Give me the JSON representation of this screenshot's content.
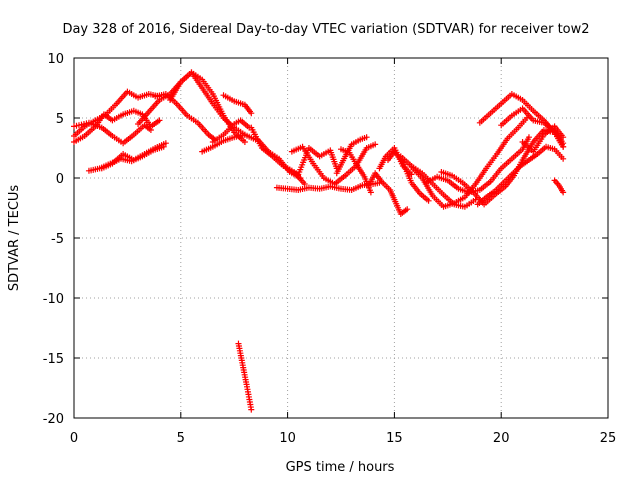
{
  "chart_data": {
    "type": "scatter",
    "title": "Day 328 of 2016, Sidereal Day-to-day VTEC variation (SDTVAR) for receiver tow2",
    "xlabel": "GPS time / hours",
    "ylabel": "SDTVAR / TECUs",
    "xlim": [
      0,
      25
    ],
    "ylim": [
      -20,
      10
    ],
    "xticks": [
      "0",
      "5",
      "10",
      "15",
      "20",
      "25"
    ],
    "yticks": [
      "10",
      "5",
      "0",
      "-5",
      "-10",
      "-15",
      "-20"
    ],
    "grid": true,
    "marker": "+",
    "series_color": "#ff0000",
    "tracks": [
      {
        "name": "arc-1",
        "x": [
          0.0,
          0.5,
          1.0,
          1.5,
          2.0,
          2.5,
          3.0,
          3.5,
          4.0
        ],
        "y": [
          3.5,
          4.3,
          4.8,
          5.3,
          6.2,
          7.2,
          6.7,
          7.0,
          6.8
        ]
      },
      {
        "name": "arc-2",
        "x": [
          0.0,
          0.7,
          1.3,
          1.8,
          2.3,
          2.8,
          3.3,
          3.6
        ],
        "y": [
          4.3,
          4.6,
          4.2,
          3.5,
          2.9,
          3.6,
          4.4,
          4.0
        ]
      },
      {
        "name": "arc-3",
        "x": [
          0.0,
          0.5,
          1.0,
          1.4,
          1.8,
          2.3,
          2.8,
          3.2,
          3.6,
          4.0
        ],
        "y": [
          3.0,
          3.5,
          4.3,
          5.3,
          4.8,
          5.3,
          5.6,
          5.3,
          4.3,
          4.8
        ]
      },
      {
        "name": "arc-4",
        "x": [
          0.7,
          1.2,
          1.7,
          2.2,
          2.7,
          3.2,
          3.7,
          4.2
        ],
        "y": [
          0.6,
          0.8,
          1.2,
          1.6,
          1.4,
          1.8,
          2.3,
          2.6
        ]
      },
      {
        "name": "arc-5",
        "x": [
          1.3,
          1.8,
          2.3,
          2.8,
          3.3,
          3.8,
          4.3
        ],
        "y": [
          0.8,
          1.2,
          2.0,
          1.5,
          2.0,
          2.5,
          2.9
        ]
      },
      {
        "name": "arc-6",
        "x": [
          3.0,
          3.5,
          4.0,
          4.5,
          5.0,
          5.5,
          6.0,
          6.5,
          7.0,
          7.5,
          8.0
        ],
        "y": [
          4.5,
          5.5,
          6.5,
          7.0,
          8.0,
          8.8,
          8.2,
          7.0,
          5.2,
          3.8,
          3.0
        ]
      },
      {
        "name": "arc-7",
        "x": [
          3.8,
          4.3,
          4.8,
          5.3,
          5.8,
          6.3,
          6.6
        ],
        "y": [
          6.8,
          7.0,
          6.2,
          5.2,
          4.6,
          3.6,
          3.2
        ]
      },
      {
        "name": "arc-8",
        "x": [
          4.5,
          5.0,
          5.5,
          6.0,
          6.5,
          7.0,
          7.5,
          8.0,
          8.5
        ],
        "y": [
          6.5,
          8.0,
          8.8,
          7.5,
          6.2,
          5.0,
          4.2,
          3.6,
          3.2
        ]
      },
      {
        "name": "arc-9",
        "x": [
          6.0,
          6.5,
          7.0,
          7.5,
          8.0
        ],
        "y": [
          2.2,
          2.6,
          3.1,
          3.4,
          3.6
        ]
      },
      {
        "name": "arc-10",
        "x": [
          6.5,
          7.0,
          7.5,
          7.8,
          8.2
        ],
        "y": [
          3.0,
          3.6,
          4.5,
          4.8,
          4.2
        ]
      },
      {
        "name": "arc-11",
        "x": [
          7.0,
          7.5,
          8.0,
          8.3
        ],
        "y": [
          6.9,
          6.4,
          6.1,
          5.4
        ]
      },
      {
        "name": "arc-12",
        "x": [
          8.3,
          8.8,
          9.3,
          9.8,
          10.3,
          10.8
        ],
        "y": [
          4.2,
          2.5,
          1.8,
          1.0,
          0.5,
          -0.5
        ]
      },
      {
        "name": "arc-13",
        "x": [
          8.6,
          9.1,
          9.6,
          10.1,
          10.6
        ],
        "y": [
          3.2,
          2.2,
          1.6,
          0.5,
          0.0
        ]
      },
      {
        "name": "arc-14",
        "x": [
          9.5,
          10.0,
          10.5,
          11.0,
          11.5,
          12.0,
          12.5,
          13.0,
          13.5,
          14.0,
          14.3
        ],
        "y": [
          -0.8,
          -0.9,
          -1.0,
          -0.8,
          -0.9,
          -0.7,
          -0.9,
          -1.0,
          -0.6,
          -0.5,
          -0.4
        ]
      },
      {
        "name": "arc-15",
        "x": [
          10.0,
          10.5,
          11.0,
          11.5,
          12.0,
          12.3
        ],
        "y": [
          0.8,
          0.3,
          2.5,
          1.8,
          2.3,
          0.8
        ]
      },
      {
        "name": "arc-16",
        "x": [
          10.2,
          10.7,
          11.2,
          11.7,
          12.2,
          12.7,
          13.2,
          13.7,
          14.1
        ],
        "y": [
          2.2,
          2.6,
          1.2,
          0.0,
          -0.5,
          0.2,
          1.0,
          2.5,
          2.8
        ]
      },
      {
        "name": "arc-17",
        "x": [
          12.3,
          12.7,
          13.0,
          13.4,
          13.7
        ],
        "y": [
          0.4,
          1.8,
          2.8,
          3.2,
          3.4
        ]
      },
      {
        "name": "arc-18",
        "x": [
          12.5,
          12.9,
          13.2,
          13.6,
          13.9
        ],
        "y": [
          2.4,
          2.1,
          1.2,
          0.1,
          -1.2
        ]
      },
      {
        "name": "arc-19",
        "x": [
          13.8,
          14.1,
          14.4,
          14.8,
          15.0,
          15.3,
          15.6
        ],
        "y": [
          -0.6,
          0.4,
          -0.3,
          -1.0,
          -1.8,
          -3.0,
          -2.6
        ]
      },
      {
        "name": "arc-20",
        "x": [
          14.3,
          14.6,
          15.0,
          15.4,
          15.8
        ],
        "y": [
          0.8,
          1.8,
          2.5,
          1.0,
          0.3
        ]
      },
      {
        "name": "arc-21",
        "x": [
          14.7,
          15.0,
          15.4,
          15.8,
          16.2,
          16.6
        ],
        "y": [
          1.5,
          2.2,
          1.3,
          -0.4,
          -1.3,
          -1.9
        ]
      },
      {
        "name": "arc-22",
        "x": [
          15.3,
          15.8,
          16.3,
          16.8,
          17.3,
          17.8,
          18.3,
          18.8
        ],
        "y": [
          1.8,
          1.0,
          0.4,
          -0.5,
          -1.4,
          -2.2,
          -2.4,
          -1.8
        ]
      },
      {
        "name": "arc-23",
        "x": [
          15.8,
          16.3,
          16.8,
          17.3,
          17.8,
          18.3,
          18.8,
          19.3,
          19.8,
          20.3,
          20.8,
          21.2
        ],
        "y": [
          0.9,
          0.0,
          -1.5,
          -2.4,
          -2.1,
          -1.6,
          -0.5,
          0.8,
          2.0,
          3.3,
          4.2,
          5.0
        ]
      },
      {
        "name": "arc-24",
        "x": [
          16.5,
          17.0,
          17.5,
          18.0,
          18.5,
          19.0,
          19.5,
          20.0,
          20.5,
          21.0,
          21.3
        ],
        "y": [
          -0.4,
          0.1,
          -0.2,
          -0.9,
          -1.2,
          -1.0,
          -0.3,
          0.8,
          1.6,
          2.4,
          3.4
        ]
      },
      {
        "name": "arc-25",
        "x": [
          17.2,
          17.7,
          18.2,
          18.7,
          19.2,
          19.7,
          20.2,
          20.6,
          21.0,
          21.5,
          22.0,
          22.5,
          22.9
        ],
        "y": [
          0.5,
          0.2,
          -0.4,
          -1.2,
          -2.2,
          -1.4,
          -0.7,
          0.2,
          1.5,
          3.0,
          4.0,
          3.8,
          2.6
        ]
      },
      {
        "name": "arc-26",
        "x": [
          19.0,
          19.5,
          20.0,
          20.5,
          21.0,
          21.5,
          22.0,
          22.5,
          22.9
        ],
        "y": [
          4.6,
          5.4,
          6.2,
          7.0,
          6.5,
          5.6,
          4.8,
          3.8,
          2.6
        ]
      },
      {
        "name": "arc-27",
        "x": [
          18.9,
          19.3,
          19.7,
          20.1,
          20.5,
          20.9,
          21.3,
          21.7,
          22.1,
          22.5,
          22.9
        ],
        "y": [
          -2.2,
          -1.6,
          -1.1,
          -0.4,
          0.3,
          1.0,
          1.5,
          2.0,
          2.6,
          2.4,
          1.6
        ]
      },
      {
        "name": "arc-28",
        "x": [
          20.0,
          20.5,
          21.0,
          21.5,
          22.0,
          22.5,
          22.9
        ],
        "y": [
          4.4,
          5.2,
          5.8,
          4.8,
          4.6,
          3.9,
          2.9
        ]
      },
      {
        "name": "arc-29",
        "x": [
          21.0,
          21.5,
          22.0,
          22.5,
          22.9
        ],
        "y": [
          3.0,
          2.2,
          3.6,
          4.3,
          3.4
        ]
      },
      {
        "name": "arc-30",
        "x": [
          22.5,
          22.7,
          22.9
        ],
        "y": [
          -0.2,
          -0.6,
          -1.2
        ]
      },
      {
        "name": "arc-31",
        "x": [
          7.7,
          7.9,
          8.1,
          8.3
        ],
        "y": [
          -13.8,
          -15.6,
          -17.4,
          -19.3
        ]
      }
    ]
  }
}
